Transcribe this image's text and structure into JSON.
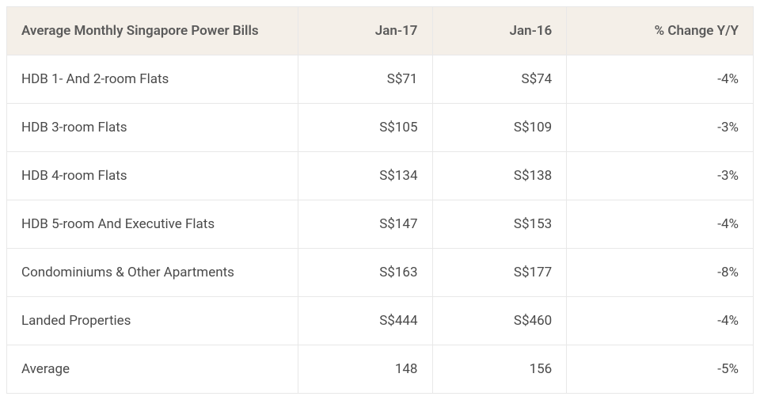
{
  "table": {
    "type": "table",
    "header_bg": "#f4efe8",
    "row_bg": "#ffffff",
    "border_color": "#e8e8e8",
    "header_text_color": "#5a5a5a",
    "cell_text_color": "#4a4a4a",
    "font_size_pt": 13,
    "header_font_weight": 600,
    "columns": [
      {
        "key": "label",
        "header": "Average Monthly Singapore Power Bills",
        "align": "left",
        "width_pct": 39
      },
      {
        "key": "jan17",
        "header": "Jan-17",
        "align": "right",
        "width_pct": 18
      },
      {
        "key": "jan16",
        "header": "Jan-16",
        "align": "right",
        "width_pct": 18
      },
      {
        "key": "change",
        "header": "% Change Y/Y",
        "align": "right",
        "width_pct": 25
      }
    ],
    "rows": [
      {
        "label": "HDB 1- And 2-room Flats",
        "jan17": "S$71",
        "jan16": "S$74",
        "change": "-4%"
      },
      {
        "label": "HDB 3-room Flats",
        "jan17": "S$105",
        "jan16": "S$109",
        "change": "-3%"
      },
      {
        "label": "HDB 4-room Flats",
        "jan17": "S$134",
        "jan16": "S$138",
        "change": "-3%"
      },
      {
        "label": "HDB 5-room And Executive Flats",
        "jan17": "S$147",
        "jan16": "S$153",
        "change": "-4%"
      },
      {
        "label": "Condominiums & Other Apartments",
        "jan17": "S$163",
        "jan16": "S$177",
        "change": "-8%"
      },
      {
        "label": "Landed Properties",
        "jan17": "S$444",
        "jan16": "S$460",
        "change": "-4%"
      },
      {
        "label": "Average",
        "jan17": "148",
        "jan16": "156",
        "change": "-5%"
      }
    ]
  }
}
